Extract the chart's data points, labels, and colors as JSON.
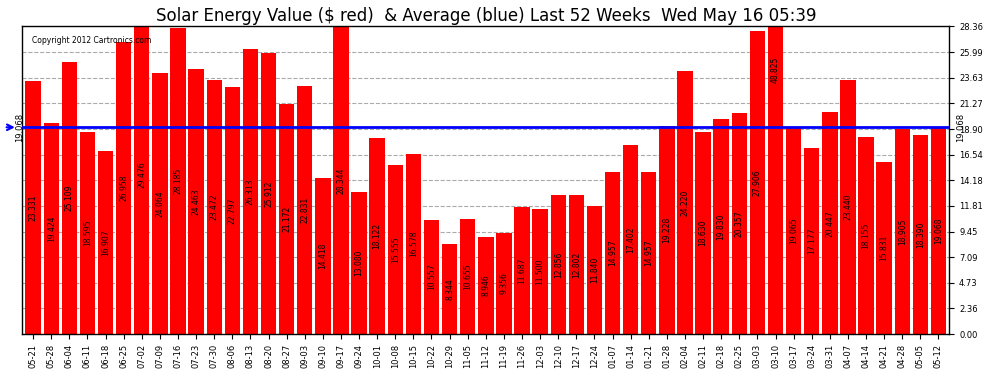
{
  "title": "Solar Energy Value ($ red)  & Average (blue) Last 52 Weeks  Wed May 16 05:39",
  "copyright": "Copyright 2012 Cartronics.com",
  "bar_color": "#ff0000",
  "average_color": "#0000ff",
  "background_color": "#ffffff",
  "grid_color": "#aaaaaa",
  "ylabel_right": [
    "0.00",
    "2.36",
    "4.73",
    "7.09",
    "9.45",
    "11.81",
    "14.18",
    "16.54",
    "18.90",
    "21.27",
    "23.63",
    "25.99",
    "28.36"
  ],
  "ylim": [
    0,
    28.36
  ],
  "average_value": 19.068,
  "categories": [
    "05-21",
    "05-28",
    "06-04",
    "06-11",
    "06-18",
    "06-25",
    "07-02",
    "07-09",
    "07-16",
    "07-23",
    "07-30",
    "08-06",
    "08-13",
    "08-20",
    "08-27",
    "09-03",
    "09-10",
    "09-17",
    "09-24",
    "10-01",
    "10-08",
    "10-15",
    "10-22",
    "10-29",
    "11-05",
    "11-12",
    "11-19",
    "11-26",
    "12-03",
    "12-10",
    "12-17",
    "12-24",
    "01-07",
    "01-14",
    "01-21",
    "01-28",
    "02-04",
    "02-11",
    "02-18",
    "02-25",
    "03-03",
    "03-10",
    "03-17",
    "03-24",
    "03-31",
    "04-07",
    "04-14",
    "04-21",
    "04-28",
    "05-05",
    "05-12"
  ],
  "values": [
    23.331,
    19.424,
    25.109,
    18.595,
    16.907,
    26.958,
    29.476,
    24.064,
    28.185,
    24.463,
    23.472,
    22.797,
    26.313,
    25.912,
    21.172,
    22.831,
    14.418,
    28.344,
    13.08,
    18.122,
    15.555,
    16.578,
    10.557,
    8.344,
    10.655,
    8.946,
    9.356,
    11.687,
    11.5,
    12.856,
    12.802,
    11.84,
    14.957,
    17.402,
    14.957,
    19.228,
    24.22,
    18.63,
    19.83,
    20.357,
    27.906,
    48.825,
    19.065,
    17.177,
    20.447,
    23.44,
    18.155,
    15.831,
    18.905,
    18.39,
    19.068
  ],
  "bar_value_fontsize": 5.5,
  "title_fontsize": 12,
  "tick_fontsize": 6
}
